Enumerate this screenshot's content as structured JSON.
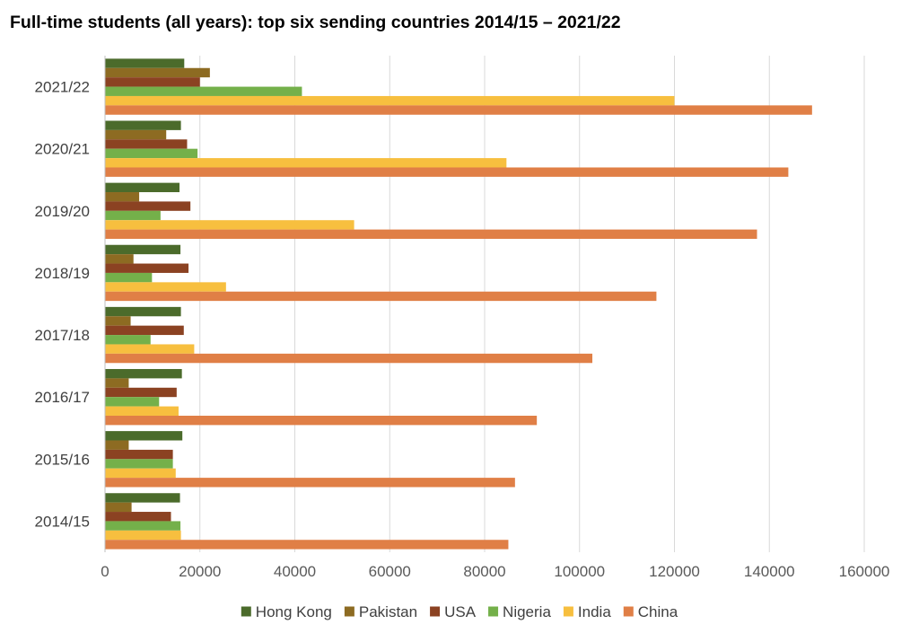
{
  "chart_data": {
    "type": "bar",
    "orientation": "horizontal",
    "title": "Full-time students (all years): top six sending countries 2014/15 – 2021/22",
    "xlabel": "",
    "ylabel": "",
    "xlim": [
      0,
      160000
    ],
    "x_ticks": [
      "0",
      "20000",
      "40000",
      "60000",
      "80000",
      "100000",
      "120000",
      "140000",
      "160000"
    ],
    "grid": "vertical",
    "legend_position": "bottom",
    "categories": [
      "2014/15",
      "2015/16",
      "2016/17",
      "2017/18",
      "2018/19",
      "2019/20",
      "2020/21",
      "2021/22"
    ],
    "series": [
      {
        "name": "Hong Kong",
        "color": "#4b6b2b",
        "values": [
          15800,
          16300,
          16200,
          16000,
          15900,
          15700,
          16000,
          16700
        ]
      },
      {
        "name": "Pakistan",
        "color": "#8d6b22",
        "values": [
          5600,
          5000,
          5000,
          5400,
          6000,
          7200,
          12900,
          22100
        ]
      },
      {
        "name": "USA",
        "color": "#8b4222",
        "values": [
          13900,
          14300,
          15100,
          16600,
          17600,
          18000,
          17300,
          20000
        ]
      },
      {
        "name": "Nigeria",
        "color": "#74b04a",
        "values": [
          15900,
          14300,
          11400,
          9600,
          9900,
          11700,
          19500,
          41500
        ]
      },
      {
        "name": "India",
        "color": "#f7bf3f",
        "values": [
          16000,
          14900,
          15500,
          18800,
          25500,
          52500,
          84600,
          120000
        ]
      },
      {
        "name": "China",
        "color": "#e07f46",
        "values": [
          85000,
          86400,
          91000,
          102700,
          116200,
          137400,
          144000,
          149000
        ]
      }
    ]
  }
}
